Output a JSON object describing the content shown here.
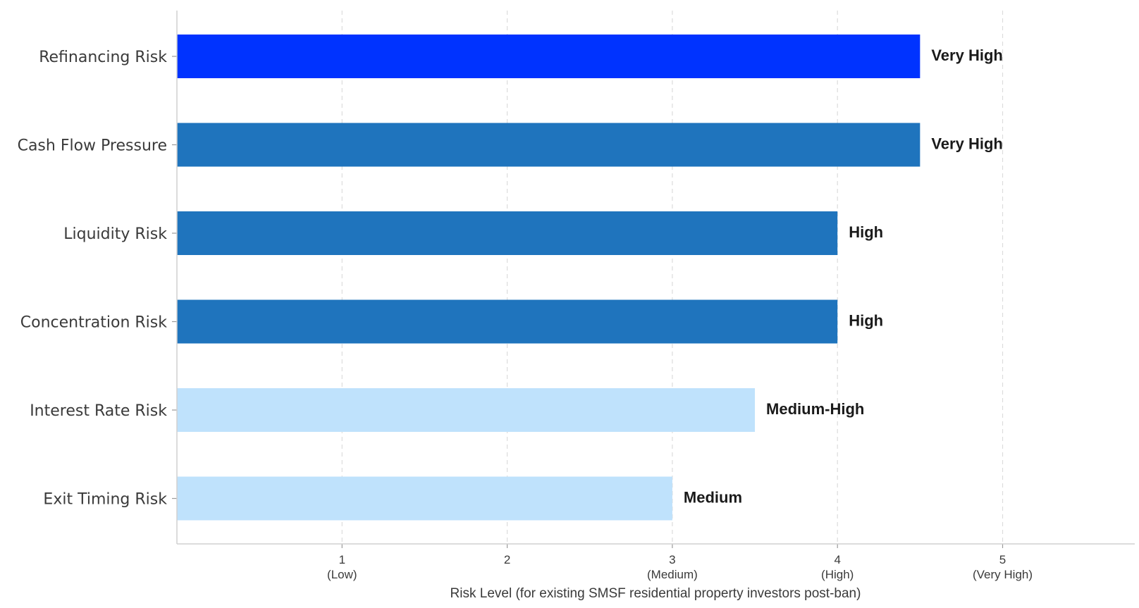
{
  "chart_data": {
    "type": "bar",
    "orientation": "horizontal",
    "categories": [
      "Refinancing Risk",
      "Cash Flow Pressure",
      "Liquidity Risk",
      "Concentration Risk",
      "Interest Rate Risk",
      "Exit Timing Risk"
    ],
    "values": [
      4.5,
      4.5,
      4.0,
      4.0,
      3.5,
      3.0
    ],
    "data_labels": [
      "Very High",
      "Very High",
      "High",
      "High",
      "Medium-High",
      "Medium"
    ],
    "bar_colors": [
      "#0033ff",
      "#1f74bd",
      "#1f74bd",
      "#1f74bd",
      "#bfe2fc",
      "#bfe2fc"
    ],
    "x_ticks": [
      {
        "value": 1,
        "label": "1",
        "sublabel": "(Low)"
      },
      {
        "value": 2,
        "label": "2",
        "sublabel": ""
      },
      {
        "value": 3,
        "label": "3",
        "sublabel": "(Medium)"
      },
      {
        "value": 4,
        "label": "4",
        "sublabel": "(High)"
      },
      {
        "value": 5,
        "label": "5",
        "sublabel": "(Very High)"
      }
    ],
    "xlim": [
      0,
      5.8
    ],
    "xlabel": "Risk Level (for existing SMSF residential property investors post-ban)",
    "ylabel": "",
    "title": "",
    "grid": "vertical dashed",
    "legend": "none"
  }
}
